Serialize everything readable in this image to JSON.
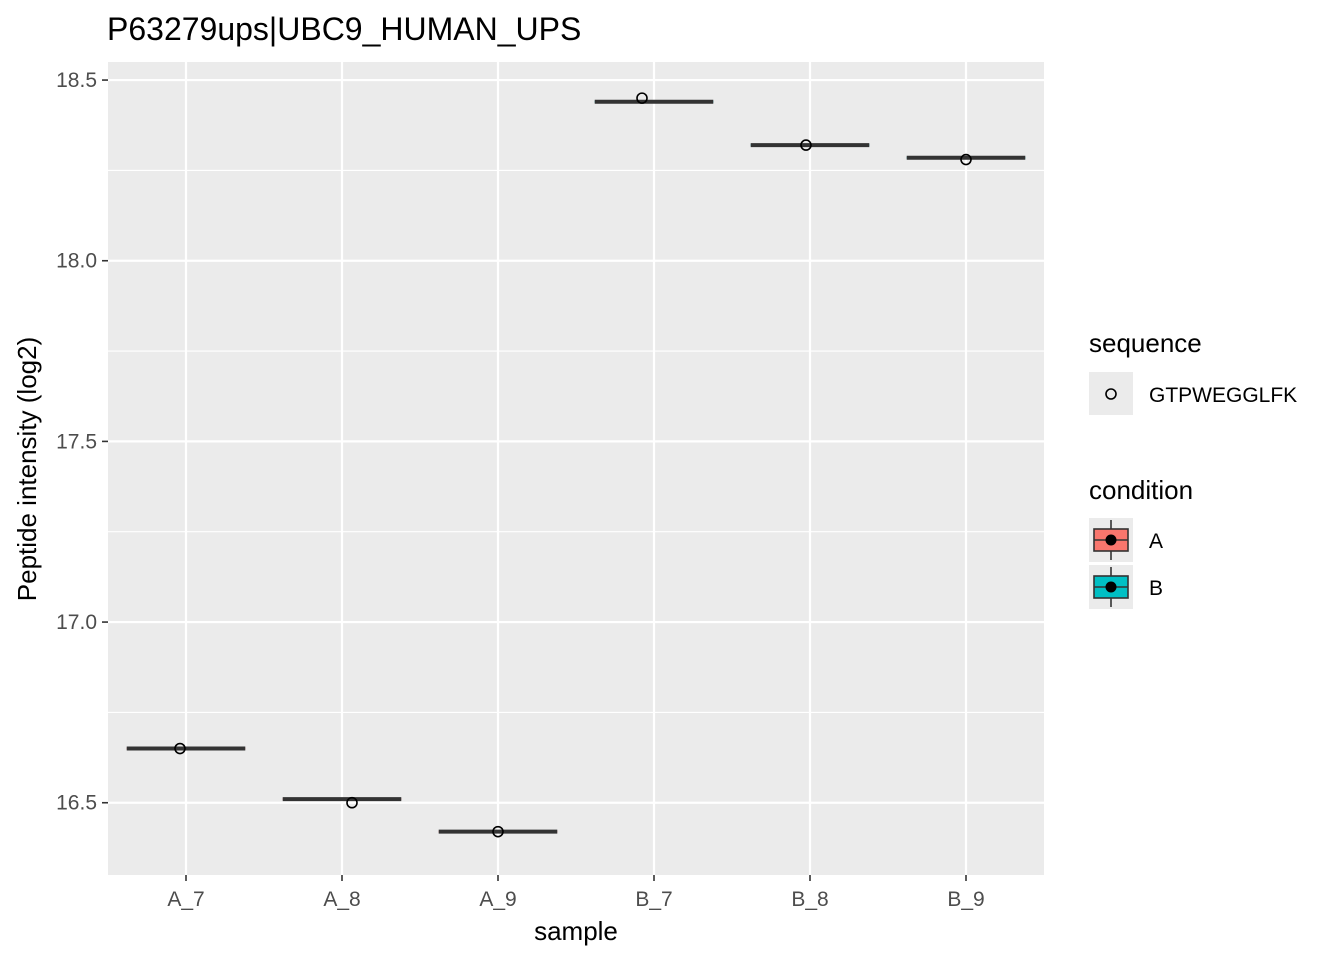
{
  "chart_data": {
    "type": "boxplot",
    "title": "P63279ups|UBC9_HUMAN_UPS",
    "xlabel": "sample",
    "ylabel": "Peptide intensity (log2)",
    "categories": [
      "A_7",
      "A_8",
      "A_9",
      "B_7",
      "B_8",
      "B_9"
    ],
    "ylim": [
      16.3,
      18.55
    ],
    "yticks": [
      16.5,
      17.0,
      17.5,
      18.0,
      18.5
    ],
    "ytick_labels": [
      "16.5",
      "17.0",
      "17.5",
      "18.0",
      "18.5"
    ],
    "grid": true,
    "medians": [
      16.65,
      16.51,
      16.42,
      18.44,
      18.32,
      18.285
    ],
    "conditions": [
      "A",
      "A",
      "A",
      "B",
      "B",
      "B"
    ],
    "points": [
      {
        "sample": "A_7",
        "value": 16.65,
        "sequence": "GTPWEGGLFK"
      },
      {
        "sample": "A_8",
        "value": 16.5,
        "sequence": "GTPWEGGLFK"
      },
      {
        "sample": "A_9",
        "value": 16.42,
        "sequence": "GTPWEGGLFK"
      },
      {
        "sample": "B_7",
        "value": 18.45,
        "sequence": "GTPWEGGLFK"
      },
      {
        "sample": "B_8",
        "value": 18.32,
        "sequence": "GTPWEGGLFK"
      },
      {
        "sample": "B_9",
        "value": 18.28,
        "sequence": "GTPWEGGLFK"
      }
    ],
    "legend": {
      "placement": "right",
      "sequence_title": "sequence",
      "sequence_items": [
        "GTPWEGGLFK"
      ],
      "condition_title": "condition",
      "condition_items": [
        {
          "label": "A",
          "color": "#F8766D"
        },
        {
          "label": "B",
          "color": "#00BFC4"
        }
      ]
    },
    "colors": {
      "panel": "#EBEBEB",
      "grid": "#FFFFFF",
      "box_line": "#333333",
      "A": "#F8766D",
      "B": "#00BFC4"
    }
  }
}
